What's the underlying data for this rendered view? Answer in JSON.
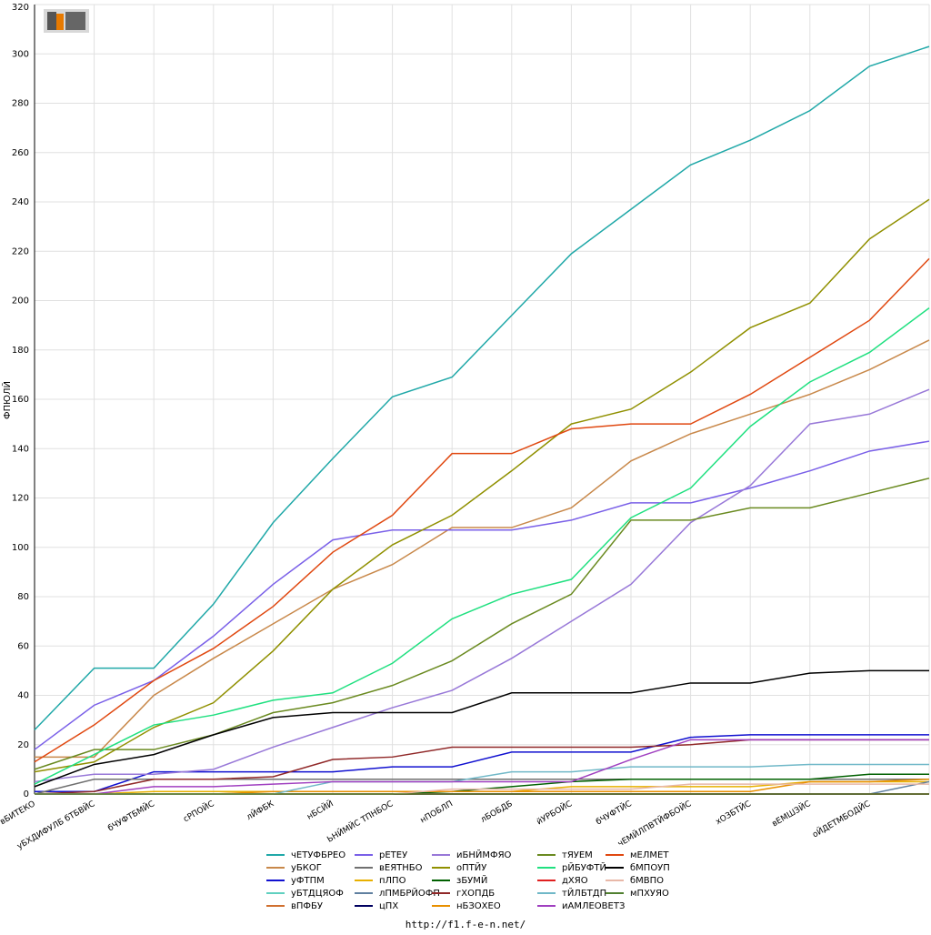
{
  "chart_data": {
    "type": "line",
    "ylabel": "ФПЮЛЙ",
    "footer": "http://f1.f-e-n.net/",
    "categories": [
      "вБИТЕКО",
      "уБХДИФУЛБ бТБВЙС",
      "бЧУФТБМЙС",
      "сРПОЙС",
      "лЙФБК",
      "нБСЙЙ",
      "ЬНЙМЙС ТПНБОС",
      "нПОБЛП",
      "лБОБДБ",
      "йУРБОЙС",
      "бЧУФТЙС",
      "чЕМЙЛПВТЙФБОЙС",
      "хОЗБТЙС",
      "вЕМШЗЙС",
      "оЙДЕТМБОДЙС",
      null
    ],
    "ylim": [
      0,
      320
    ],
    "yticks": [
      0,
      20,
      40,
      60,
      80,
      100,
      120,
      140,
      160,
      180,
      200,
      220,
      240,
      260,
      280,
      300,
      320
    ],
    "grid": true,
    "legend": "bottom",
    "series": [
      {
        "name": "чЕТУФБРЕО",
        "color": "#20a8a8",
        "values": [
          26,
          51,
          51,
          77,
          110,
          136,
          161,
          169,
          194,
          219,
          237,
          255,
          265,
          277,
          295,
          303
        ]
      },
      {
        "name": "уБКОГ",
        "color": "#c8884a",
        "values": [
          15,
          15,
          40,
          55,
          69,
          83,
          93,
          108,
          108,
          116,
          135,
          146,
          154,
          162,
          172,
          184
        ]
      },
      {
        "name": "уФТПМ",
        "color": "#1010d0",
        "values": [
          1,
          1,
          9,
          9,
          9,
          9,
          11,
          11,
          17,
          17,
          17,
          23,
          24,
          24,
          24,
          24
        ]
      },
      {
        "name": "уБТДЦЯОФ",
        "color": "#60d0c0",
        "values": [
          0,
          0,
          0,
          0,
          0,
          0,
          0,
          0,
          0,
          0,
          0,
          0,
          0,
          0,
          0,
          0
        ]
      },
      {
        "name": "вПФБУ",
        "color": "#d07030",
        "values": [
          0,
          0,
          0,
          0,
          0,
          0,
          0,
          0,
          0,
          0,
          0,
          0,
          0,
          0,
          0,
          0
        ]
      },
      {
        "name": "рЕТЕУ",
        "color": "#7a60e8",
        "values": [
          18,
          36,
          46,
          64,
          85,
          103,
          107,
          107,
          107,
          111,
          118,
          118,
          124,
          131,
          139,
          143
        ]
      },
      {
        "name": "вЕЯТНБО",
        "color": "#707070",
        "values": [
          0,
          6,
          6,
          6,
          6,
          6,
          6,
          6,
          6,
          6,
          6,
          6,
          6,
          6,
          6,
          6
        ]
      },
      {
        "name": "пЛПО",
        "color": "#e8b000",
        "values": [
          0,
          0,
          1,
          1,
          1,
          1,
          1,
          1,
          1,
          3,
          3,
          3,
          3,
          5,
          5,
          5
        ]
      },
      {
        "name": "лПМБРЙОФП",
        "color": "#6080a0",
        "values": [
          0,
          0,
          0,
          0,
          0,
          0,
          0,
          0,
          0,
          0,
          0,
          0,
          0,
          0,
          0,
          5
        ]
      },
      {
        "name": "цПХ",
        "color": "#000060",
        "values": [
          0,
          0,
          0,
          0,
          0,
          0,
          0,
          0,
          0,
          0,
          0,
          0,
          0,
          0,
          0,
          0
        ]
      },
      {
        "name": "иБНЙМФЯО",
        "color": "#9878d8",
        "values": [
          5,
          8,
          8,
          10,
          19,
          27,
          35,
          42,
          55,
          70,
          85,
          110,
          125,
          150,
          154,
          164
        ]
      },
      {
        "name": "оПТЙУ",
        "color": "#909000",
        "values": [
          9,
          13,
          27,
          37,
          58,
          83,
          101,
          113,
          131,
          150,
          156,
          171,
          189,
          199,
          225,
          241
        ]
      },
      {
        "name": "зБУМЙ",
        "color": "#006000",
        "values": [
          0,
          0,
          0,
          0,
          0,
          0,
          0,
          1,
          3,
          5,
          6,
          6,
          6,
          6,
          8,
          8
        ]
      },
      {
        "name": "гХОПДБ",
        "color": "#902828",
        "values": [
          0,
          1,
          6,
          6,
          7,
          14,
          15,
          19,
          19,
          19,
          19,
          20,
          22,
          22,
          22,
          22
        ]
      },
      {
        "name": "нБЗОХЕО",
        "color": "#e89000",
        "values": [
          0,
          0,
          0,
          0,
          1,
          1,
          1,
          1,
          1,
          1,
          1,
          1,
          1,
          5,
          5,
          6
        ]
      },
      {
        "name": "тЯУЕМ",
        "color": "#6a8a20",
        "values": [
          10,
          18,
          18,
          24,
          33,
          37,
          44,
          54,
          69,
          81,
          111,
          111,
          116,
          116,
          122,
          128
        ]
      },
      {
        "name": "рЙБУФТЙ",
        "color": "#20e080",
        "values": [
          4,
          16,
          28,
          32,
          38,
          41,
          53,
          71,
          81,
          87,
          112,
          124,
          149,
          167,
          179,
          197
        ]
      },
      {
        "name": "дХЯО",
        "color": "#e02020",
        "values": [
          0,
          0,
          0,
          0,
          0,
          0,
          0,
          0,
          0,
          0,
          0,
          0,
          0,
          0,
          0,
          0
        ]
      },
      {
        "name": "тЙЛБТДП",
        "color": "#70b8c8",
        "values": [
          0,
          0,
          0,
          0,
          0,
          5,
          5,
          5,
          9,
          9,
          11,
          11,
          11,
          12,
          12,
          12
        ]
      },
      {
        "name": "иАМЛЕОВЕТЗ",
        "color": "#a040c0",
        "values": [
          0,
          0,
          3,
          3,
          4,
          5,
          5,
          5,
          5,
          5,
          14,
          22,
          22,
          22,
          22,
          22
        ]
      },
      {
        "name": "мЕЛМЕТ",
        "color": "#e04810",
        "values": [
          13,
          28,
          46,
          59,
          76,
          98,
          113,
          138,
          138,
          148,
          150,
          150,
          162,
          177,
          192,
          217
        ]
      },
      {
        "name": "бМПОУП",
        "color": "#000000",
        "values": [
          3,
          12,
          16,
          24,
          31,
          33,
          33,
          33,
          41,
          41,
          41,
          45,
          45,
          49,
          50,
          50
        ]
      },
      {
        "name": "бМВПО",
        "color": "#e8b8a8",
        "values": [
          0,
          0,
          0,
          0,
          0,
          0,
          0,
          2,
          2,
          2,
          2,
          4,
          4,
          4,
          4,
          4
        ]
      },
      {
        "name": "мПХУЯО",
        "color": "#508030",
        "values": [
          0,
          0,
          0,
          0,
          0,
          0,
          0,
          0,
          0,
          0,
          0,
          0,
          0,
          0,
          0,
          0
        ]
      }
    ]
  }
}
